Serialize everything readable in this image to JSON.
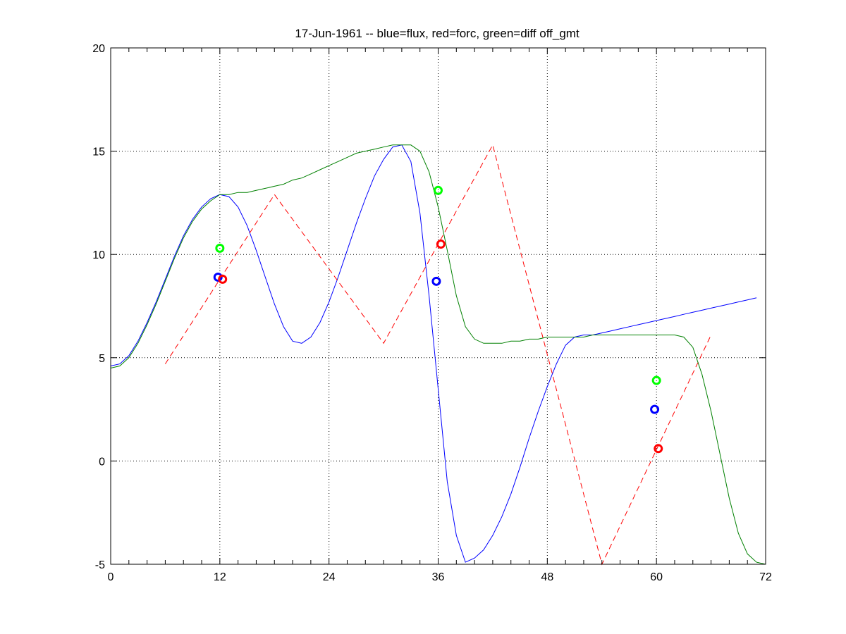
{
  "chart_data": {
    "type": "line",
    "title": "17-Jun-1961 -- blue=flux, red=forc, green=diff off_gmt",
    "xlabel": "",
    "ylabel": "",
    "xlim": [
      0,
      72
    ],
    "ylim": [
      -5,
      20
    ],
    "xticks": [
      0,
      12,
      24,
      36,
      48,
      60,
      72
    ],
    "yticks": [
      -5,
      0,
      5,
      10,
      15,
      20
    ],
    "grid": "dotted",
    "legend": "none",
    "series": [
      {
        "color": "#0000ff",
        "style": "solid",
        "x": [
          0,
          1,
          2,
          3,
          4,
          5,
          6,
          7,
          8,
          9,
          10,
          11,
          12,
          13,
          14,
          15,
          16,
          17,
          18,
          19,
          20,
          21,
          22,
          23,
          24,
          25,
          26,
          27,
          28,
          29,
          30,
          31,
          32,
          33,
          34,
          35,
          36,
          37,
          38,
          39,
          40,
          41,
          42,
          43,
          44,
          45,
          46,
          47,
          48,
          49,
          50,
          51,
          52,
          53,
          54,
          55,
          56,
          57,
          58,
          59,
          60,
          61,
          62,
          63,
          64,
          65,
          66,
          67,
          68,
          69,
          70,
          71
        ],
        "y": [
          4.6,
          4.7,
          5.1,
          5.8,
          6.7,
          7.7,
          8.8,
          9.9,
          10.9,
          11.7,
          12.3,
          12.7,
          12.9,
          12.8,
          12.3,
          11.4,
          10.2,
          8.9,
          7.6,
          6.5,
          5.8,
          5.7,
          6.0,
          6.7,
          7.7,
          8.9,
          10.2,
          11.5,
          12.7,
          13.8,
          14.6,
          15.2,
          15.3,
          14.5,
          12.0,
          8.0,
          3.5,
          -1.0,
          -3.6,
          -4.9,
          -4.7,
          -4.3,
          -3.6,
          -2.7,
          -1.6,
          -0.3,
          1.1,
          2.4,
          3.6,
          4.7,
          5.6,
          6.0,
          6.1,
          6.1,
          6.2,
          6.3,
          6.4,
          6.5,
          6.6,
          6.7,
          6.8,
          6.9,
          7.0,
          7.1,
          7.2,
          7.3,
          7.4,
          7.5,
          7.6,
          7.7,
          7.8,
          7.9
        ]
      },
      {
        "color": "#ff0000",
        "style": "dashed",
        "x": [
          6,
          18,
          30,
          42,
          54,
          66
        ],
        "y": [
          4.7,
          12.9,
          5.7,
          15.3,
          -5.0,
          6.1
        ]
      },
      {
        "color": "#008000",
        "style": "solid",
        "x": [
          0,
          1,
          2,
          3,
          4,
          5,
          6,
          7,
          8,
          9,
          10,
          11,
          12,
          13,
          14,
          15,
          16,
          17,
          18,
          19,
          20,
          21,
          22,
          23,
          24,
          25,
          26,
          27,
          28,
          29,
          30,
          31,
          32,
          33,
          34,
          35,
          36,
          37,
          38,
          39,
          40,
          41,
          42,
          43,
          44,
          45,
          46,
          47,
          48,
          49,
          50,
          51,
          52,
          53,
          54,
          55,
          56,
          57,
          58,
          59,
          60,
          61,
          62,
          63,
          64,
          65,
          66,
          67,
          68,
          69,
          70,
          71,
          72
        ],
        "y": [
          4.5,
          4.6,
          5.0,
          5.7,
          6.6,
          7.6,
          8.7,
          9.8,
          10.8,
          11.6,
          12.2,
          12.6,
          12.9,
          12.9,
          13.0,
          13.0,
          13.1,
          13.2,
          13.3,
          13.4,
          13.6,
          13.7,
          13.9,
          14.1,
          14.3,
          14.5,
          14.7,
          14.9,
          15.0,
          15.1,
          15.2,
          15.3,
          15.3,
          15.3,
          15.0,
          14.0,
          12.3,
          10.2,
          8.0,
          6.5,
          5.9,
          5.7,
          5.7,
          5.7,
          5.8,
          5.8,
          5.9,
          5.9,
          6.0,
          6.0,
          6.0,
          6.0,
          6.0,
          6.1,
          6.1,
          6.1,
          6.1,
          6.1,
          6.1,
          6.1,
          6.1,
          6.1,
          6.1,
          6.0,
          5.5,
          4.2,
          2.4,
          0.3,
          -1.8,
          -3.5,
          -4.5,
          -4.9,
          -5.0
        ]
      }
    ],
    "markers": [
      {
        "x": 11.8,
        "y": 8.9,
        "color": "#0000ff"
      },
      {
        "x": 12.3,
        "y": 8.8,
        "color": "#ff0000"
      },
      {
        "x": 12.0,
        "y": 10.3,
        "color": "#00ff00"
      },
      {
        "x": 35.8,
        "y": 8.7,
        "color": "#0000ff"
      },
      {
        "x": 36.3,
        "y": 10.5,
        "color": "#ff0000"
      },
      {
        "x": 36.0,
        "y": 13.1,
        "color": "#00ff00"
      },
      {
        "x": 59.8,
        "y": 2.5,
        "color": "#0000ff"
      },
      {
        "x": 60.2,
        "y": 0.6,
        "color": "#ff0000"
      },
      {
        "x": 60.0,
        "y": 3.9,
        "color": "#00ff00"
      }
    ]
  }
}
